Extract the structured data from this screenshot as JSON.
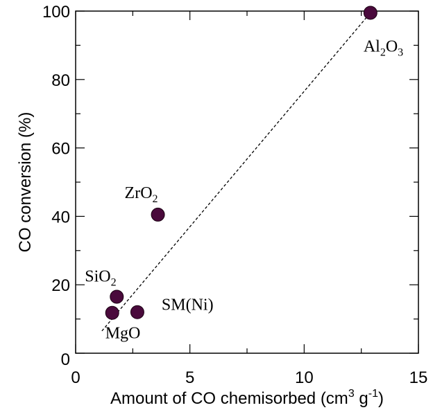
{
  "chart_data": {
    "type": "scatter",
    "title": "",
    "xlabel": "Amount of CO chemisorbed (cm",
    "xlabel_sup1": "3",
    "xlabel_mid": " g",
    "xlabel_sup2": "-1",
    "xlabel_end": ")",
    "ylabel": "CO conversion (%)",
    "xlim": [
      0,
      15
    ],
    "ylim": [
      0,
      100
    ],
    "xticks": [
      0,
      5,
      10,
      15
    ],
    "yticks": [
      0,
      20,
      40,
      60,
      80,
      100
    ],
    "grid": false,
    "point_color": "#4a0a3c",
    "points": [
      {
        "label": "MgO",
        "label_base": "MgO",
        "x": 1.6,
        "y": 11.8
      },
      {
        "label": "SiO2",
        "label_base": "SiO",
        "sub": "2",
        "x": 1.8,
        "y": 16.5
      },
      {
        "label": "SM(Ni)",
        "label_base": "SM(Ni)",
        "x": 2.7,
        "y": 12
      },
      {
        "label": "ZrO2",
        "label_base": "ZrO",
        "sub": "2",
        "x": 3.6,
        "y": 40.5
      },
      {
        "label": "Al2O3",
        "label_base": "Al",
        "sub": "2",
        "label_mid": "O",
        "sub2": "3",
        "x": 12.9,
        "y": 99.5
      }
    ],
    "trendline": {
      "style": "dashed",
      "from": [
        1.15,
        6.5
      ],
      "to": [
        12.9,
        99.5
      ]
    }
  }
}
